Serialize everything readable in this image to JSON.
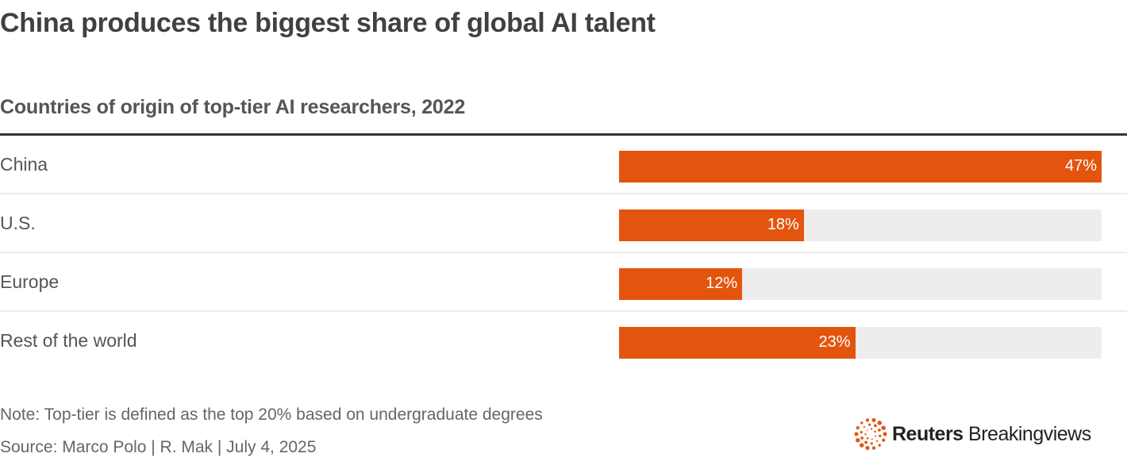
{
  "title": "China produces the biggest share of global AI talent",
  "subtitle": "Countries of origin of top-tier AI researchers, 2022",
  "chart_data": {
    "type": "bar",
    "orientation": "horizontal",
    "categories": [
      "China",
      "U.S.",
      "Europe",
      "Rest of the world"
    ],
    "values": [
      47,
      18,
      12,
      23
    ],
    "value_labels": [
      "47%",
      "18%",
      "12%",
      "23%"
    ],
    "unit": "%",
    "xlim": [
      0,
      47
    ],
    "grid": false,
    "colors": {
      "bar": "#e3550f",
      "track": "#ededed"
    }
  },
  "note": "Note: Top-tier is defined as the top 20% based on undergraduate degrees",
  "source": "Source: Marco Polo | R. Mak | July 4, 2025",
  "logo": {
    "brand": "Reuters",
    "product": "Breakingviews",
    "icon": "reuters-dot-ring-icon"
  }
}
